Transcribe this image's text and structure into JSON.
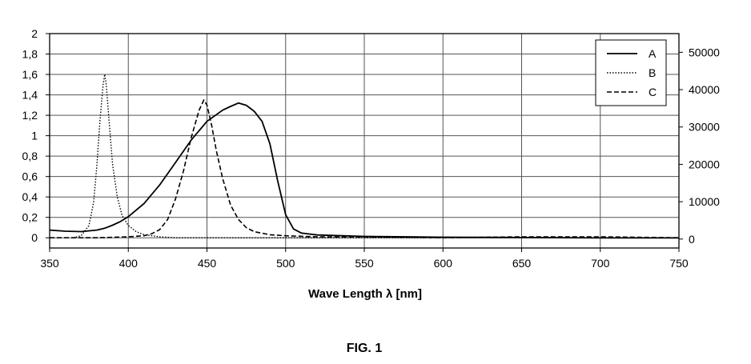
{
  "chart_data": {
    "type": "line",
    "title": "",
    "xlabel": "Wave Length λ [nm]",
    "ylabel": "",
    "y2label": "",
    "xlim": [
      350,
      750
    ],
    "ylim": [
      -0.1,
      2
    ],
    "y2lim": [
      -2400,
      55000
    ],
    "grid": true,
    "legend_position": "top-right",
    "x_ticks": [
      "350",
      "400",
      "450",
      "500",
      "550",
      "600",
      "650",
      "700",
      "750"
    ],
    "y_ticks": [
      "2",
      "1,8",
      "1,6",
      "1,4",
      "1,2",
      "1",
      "0,8",
      "0,6",
      "0,4",
      "0,2",
      "0"
    ],
    "y2_ticks": [
      "50000",
      "40000",
      "30000",
      "20000",
      "10000",
      "0"
    ],
    "series": [
      {
        "name": "A",
        "axis": "right",
        "style": "solid",
        "x": [
          350,
          360,
          370,
          380,
          385,
          390,
          395,
          400,
          410,
          420,
          430,
          440,
          450,
          460,
          465,
          470,
          475,
          480,
          485,
          490,
          495,
          500,
          505,
          510,
          520,
          550,
          600,
          650,
          700,
          750
        ],
        "y": [
          2400,
          2100,
          2000,
          2400,
          2900,
          3700,
          4700,
          6000,
          9500,
          14500,
          20500,
          26500,
          31500,
          34500,
          35500,
          36400,
          35800,
          34200,
          31500,
          25500,
          15500,
          6500,
          2700,
          1600,
          1100,
          700,
          500,
          400,
          300,
          300
        ]
      },
      {
        "name": "B",
        "axis": "left",
        "style": "dotted",
        "x": [
          365,
          370,
          375,
          378,
          380,
          382,
          384,
          385,
          386,
          388,
          390,
          393,
          396,
          400,
          405,
          410,
          420,
          430,
          450,
          500,
          600,
          750
        ],
        "y": [
          0,
          0.02,
          0.12,
          0.35,
          0.7,
          1.15,
          1.5,
          1.6,
          1.5,
          1.1,
          0.72,
          0.4,
          0.22,
          0.12,
          0.06,
          0.03,
          0.01,
          0,
          0,
          0,
          0,
          0
        ]
      },
      {
        "name": "C",
        "axis": "left",
        "style": "dashed",
        "x": [
          350,
          380,
          400,
          410,
          415,
          420,
          425,
          430,
          435,
          440,
          445,
          448,
          450,
          453,
          456,
          460,
          465,
          470,
          475,
          480,
          490,
          500,
          520,
          550,
          600,
          650,
          700,
          750
        ],
        "y": [
          0,
          0,
          0.01,
          0.02,
          0.04,
          0.08,
          0.18,
          0.38,
          0.65,
          0.98,
          1.25,
          1.35,
          1.3,
          1.1,
          0.85,
          0.58,
          0.32,
          0.18,
          0.1,
          0.06,
          0.03,
          0.02,
          0.01,
          0.01,
          0,
          0.01,
          0.01,
          0
        ]
      }
    ]
  },
  "caption": "FIG. 1"
}
